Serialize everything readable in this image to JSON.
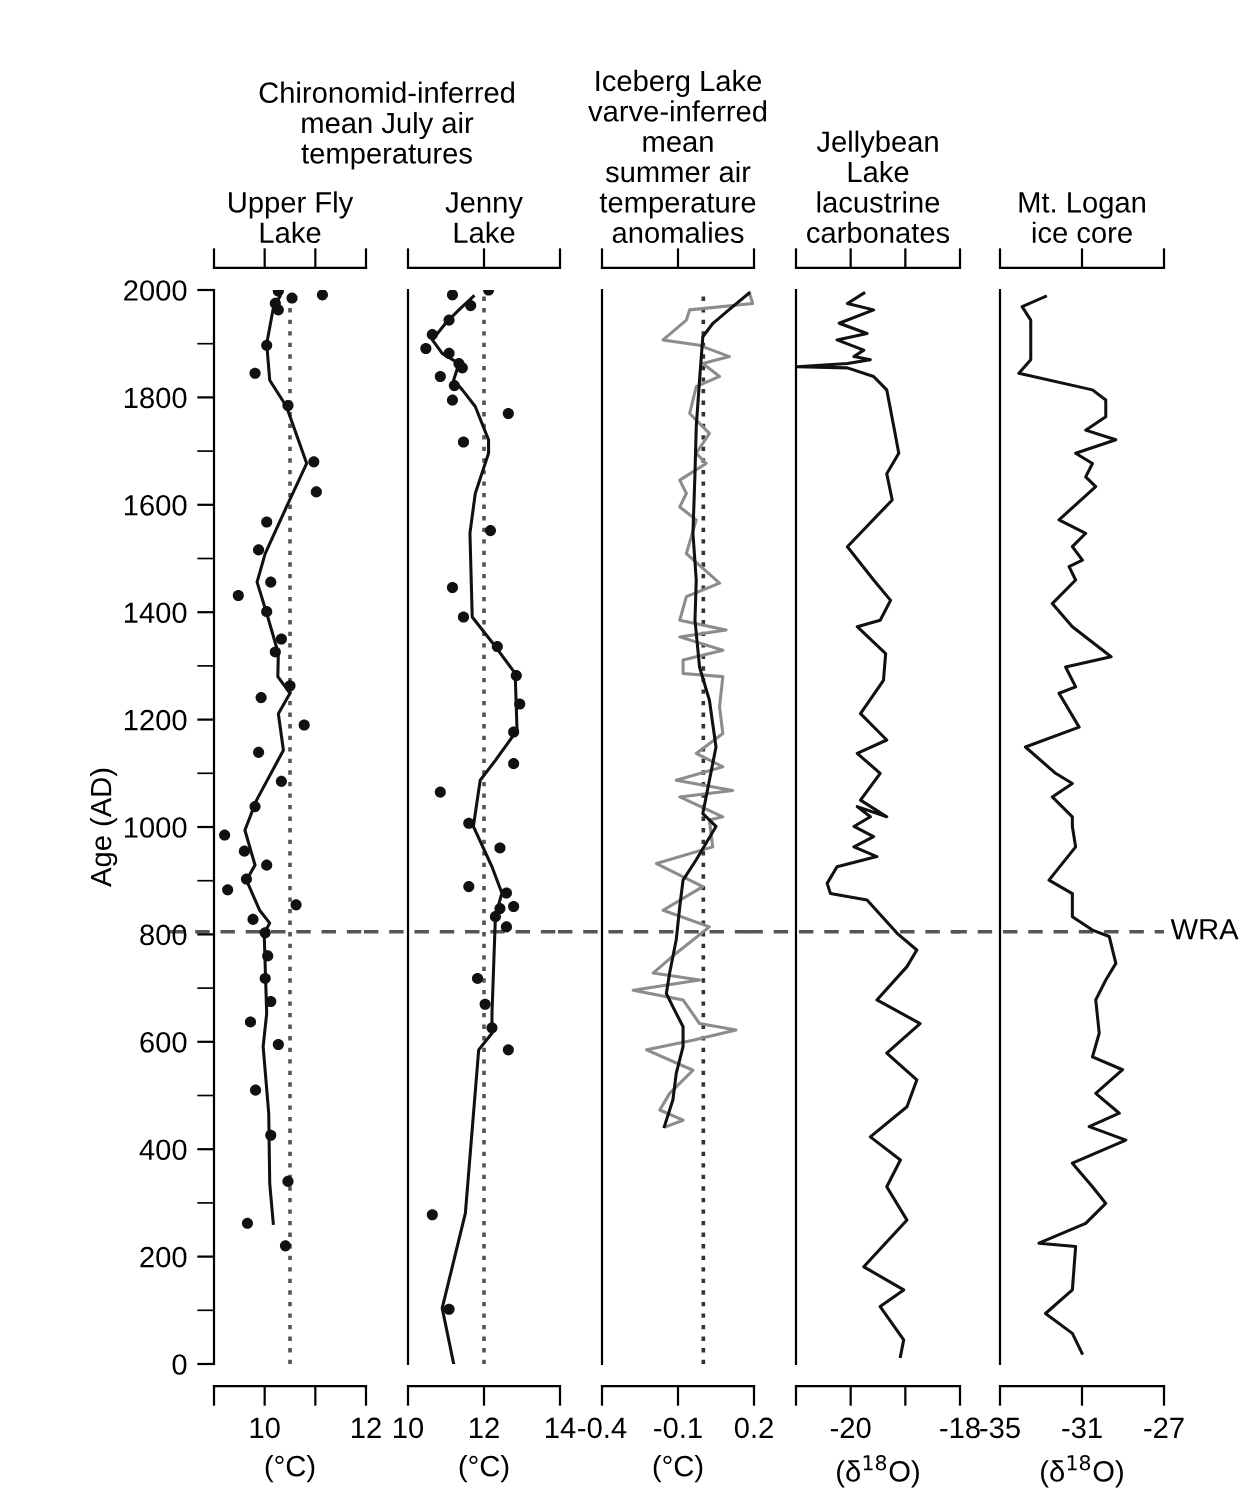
{
  "chart_data": [
    {
      "type": "scatter",
      "title": "Upper Fly\nLake",
      "xlabel": "(°C)",
      "ylabel": "Age (AD)",
      "annotations": [
        "Chironomid-inferred\nmean July air\ntemperatures"
      ],
      "xlim": [
        9,
        12
      ],
      "xticks": [
        {
          "value": 9,
          "label": null
        },
        10,
        {
          "value": 11,
          "label": null
        },
        12
      ],
      "ylim": [
        0,
        2000
      ],
      "yticks": [
        0,
        {
          "value": 100,
          "label": null
        },
        200,
        {
          "value": 300,
          "label": null
        },
        400,
        {
          "value": 500,
          "label": null
        },
        600,
        {
          "value": 700,
          "label": null
        },
        800,
        {
          "value": 900,
          "label": null
        },
        1000,
        {
          "value": 1100,
          "label": null
        },
        1200,
        {
          "value": 1300,
          "label": null
        },
        1400,
        {
          "value": 1500,
          "label": null
        },
        1600,
        {
          "value": 1700,
          "label": null
        },
        1800,
        {
          "value": 1900,
          "label": null
        },
        2000
      ],
      "series": [
        {
          "marker": "circle",
          "color": "#111111",
          "x": [
            10.27,
            11.14,
            10.54,
            10.21,
            10.27,
            10.04,
            9.81,
            10.46,
            10.97,
            11.02,
            10.04,
            9.88,
            10.12,
            9.48,
            10.04,
            10.33,
            10.21,
            10.5,
            9.93,
            10.78,
            9.88,
            10.33,
            9.81,
            9.21,
            9.6,
            10.04,
            9.64,
            9.27,
            10.62,
            9.77,
            10.01,
            10.06,
            10.01,
            10.12,
            9.72,
            10.27,
            9.82,
            10.12,
            10.46,
            9.66,
            10.41
          ],
          "values": [
            1998,
            1991,
            1985,
            1975,
            1963,
            1897,
            1845,
            1785,
            1680,
            1624,
            1568,
            1516,
            1456,
            1431,
            1401,
            1350,
            1326,
            1263,
            1241,
            1190,
            1139,
            1085,
            1038,
            985,
            955,
            929,
            903,
            883,
            855,
            828,
            803,
            760,
            718,
            675,
            637,
            595,
            510,
            426,
            340,
            262,
            220
          ]
        },
        {
          "type": "line",
          "color": "#111111",
          "x": [
            10.3,
            10.17,
            10.04,
            10.1,
            10.43,
            10.83,
            10.43,
            10.01,
            9.85,
            10.04,
            10.27,
            10.26,
            10.5,
            10.27,
            10.37,
            9.84,
            9.61,
            9.81,
            9.64,
            9.9,
            10.1,
            9.99,
            10.04,
            9.97,
            10.08,
            10.1,
            10.17
          ],
          "values": [
            1988,
            1966,
            1900,
            1832,
            1783,
            1677,
            1596,
            1509,
            1456,
            1398,
            1323,
            1280,
            1249,
            1211,
            1143,
            1050,
            994,
            929,
            901,
            845,
            821,
            802,
            653,
            591,
            467,
            336,
            262
          ]
        }
      ],
      "ref_lines": [
        {
          "axis": "x",
          "value": 10.5,
          "line_style": "dotted",
          "color": "#555555"
        },
        {
          "axis": "y",
          "value": 805,
          "line_style": "dashed",
          "color": "#555555"
        }
      ]
    },
    {
      "type": "scatter",
      "title": "Jenny\nLake",
      "xlabel": "(°C)",
      "tick_labels": "x",
      "xlim": [
        10,
        14
      ],
      "xticks": [
        10,
        12,
        14
      ],
      "ylim": [
        0,
        2000
      ],
      "series": [
        {
          "marker": "circle",
          "color": "#111111",
          "x": [
            12.12,
            11.17,
            11.65,
            11.08,
            10.64,
            10.47,
            11.08,
            11.34,
            11.43,
            10.85,
            11.22,
            11.17,
            12.64,
            11.46,
            12.17,
            11.17,
            11.46,
            12.35,
            12.85,
            12.94,
            12.78,
            12.78,
            10.85,
            11.6,
            12.42,
            11.6,
            12.59,
            12.78,
            12.42,
            12.3,
            12.59,
            11.83,
            12.03,
            12.21,
            12.64,
            10.64,
            11.08
          ],
          "values": [
            2000,
            1991,
            1971,
            1944,
            1917,
            1891,
            1882,
            1863,
            1855,
            1839,
            1822,
            1795,
            1770,
            1717,
            1552,
            1446,
            1391,
            1336,
            1282,
            1229,
            1177,
            1118,
            1065,
            1007,
            961,
            889,
            877,
            852,
            848,
            833,
            814,
            718,
            670,
            626,
            585,
            278,
            102
          ]
        },
        {
          "type": "line",
          "color": "#111111",
          "x": [
            11.72,
            11.34,
            10.99,
            10.64,
            10.9,
            11.34,
            11.2,
            11.43,
            11.77,
            12.12,
            12.12,
            11.77,
            11.63,
            11.69,
            12.3,
            12.82,
            12.87,
            12.3,
            11.9,
            11.72,
            12.21,
            12.47,
            12.3,
            12.21,
            12.21,
            11.86,
            11.51,
            10.9,
            11.2
          ],
          "values": [
            1988,
            1963,
            1938,
            1907,
            1882,
            1863,
            1832,
            1814,
            1783,
            1721,
            1696,
            1621,
            1547,
            1391,
            1336,
            1286,
            1180,
            1124,
            1087,
            1001,
            926,
            877,
            833,
            653,
            616,
            585,
            281,
            104,
            1
          ]
        }
      ],
      "ref_lines": [
        {
          "axis": "x",
          "value": 12,
          "line_style": "dotted",
          "color": "#555555"
        },
        {
          "axis": "y",
          "value": 805,
          "line_style": "dashed",
          "color": "#555555"
        }
      ]
    },
    {
      "type": "line",
      "title": "Iceberg Lake\nvarve-inferred\nmean\nsummer air\ntemperature\nanomalies",
      "xlabel": "(°C)",
      "tick_labels": "x",
      "xlim": [
        -0.4,
        0.2
      ],
      "xticks": [
        -0.4,
        -0.1,
        0.2
      ],
      "ylim": [
        0,
        2000
      ],
      "series": [
        {
          "color": "#8c8c8c",
          "x": [
            0.182,
            0.195,
            -0.054,
            -0.067,
            -0.159,
            -0.015,
            0.103,
            -0.002,
            0.064,
            -0.028,
            -0.054,
            0.024,
            -0.028,
            0.011,
            -0.093,
            -0.067,
            -0.093,
            -0.028,
            -0.067,
            0.064,
            -0.067,
            -0.093,
            0.09,
            -0.093,
            0.077,
            -0.08,
            -0.08,
            0.077,
            0.064,
            0.077,
            -0.028,
            0.077,
            -0.107,
            0.116,
            -0.093,
            0.077,
            0.024,
            0.037,
            -0.185,
            -0.002,
            -0.159,
            0.024,
            -0.107,
            -0.198,
            -0.015,
            -0.277,
            -0.08,
            -0.015,
            0.129,
            -0.041,
            -0.224,
            -0.041,
            -0.133,
            -0.172,
            -0.08,
            -0.146
          ],
          "values": [
            1994,
            1975,
            1963,
            1944,
            1907,
            1897,
            1876,
            1863,
            1839,
            1820,
            1770,
            1733,
            1696,
            1677,
            1646,
            1621,
            1596,
            1572,
            1509,
            1454,
            1429,
            1385,
            1367,
            1354,
            1329,
            1311,
            1286,
            1280,
            1224,
            1174,
            1137,
            1112,
            1087,
            1068,
            1056,
            1019,
            1013,
            963,
            932,
            889,
            845,
            814,
            765,
            728,
            715,
            696,
            678,
            634,
            622,
            603,
            585,
            547,
            504,
            473,
            454,
            442
          ]
        },
        {
          "color": "#111111",
          "x": [
            0.18,
            0.116,
            0.038,
            -0.002,
            -0.015,
            -0.028,
            -0.033,
            -0.041,
            -0.028,
            -0.033,
            -0.015,
            0.024,
            0.05,
            0.024,
            -0.002,
            0.05,
            -0.028,
            -0.08,
            -0.093,
            -0.107,
            -0.133,
            -0.146,
            -0.12,
            -0.08,
            -0.08,
            -0.107,
            -0.12,
            -0.154
          ],
          "values": [
            1994,
            1969,
            1938,
            1913,
            1832,
            1745,
            1658,
            1547,
            1460,
            1385,
            1298,
            1236,
            1149,
            1087,
            1025,
            1001,
            939,
            901,
            852,
            790,
            728,
            690,
            665,
            628,
            591,
            541,
            492,
            442
          ]
        }
      ],
      "ref_lines": [
        {
          "axis": "x",
          "value": 0,
          "line_style": "dotted",
          "color": "#333333"
        },
        {
          "axis": "y",
          "value": 805,
          "line_style": "dashed",
          "color": "#555555"
        }
      ]
    },
    {
      "type": "line",
      "title": "Jellybean\nLake\nlacustrine\ncarbonates",
      "xlabel": "(δ$^{18}$O)",
      "tick_labels": "x",
      "xlim": [
        -21,
        -18
      ],
      "xticks": [
        {
          "value": -21,
          "label": null
        },
        -20,
        {
          "value": -19,
          "label": null
        },
        -18
      ],
      "ylim": [
        0,
        2000
      ],
      "series": [
        {
          "color": "#111111",
          "x": [
            -19.76,
            -20.06,
            -19.58,
            -20.21,
            -19.7,
            -20.25,
            -19.76,
            -19.94,
            -19.64,
            -20.06,
            -20.98,
            -20.06,
            -19.58,
            -19.34,
            -19.21,
            -19.12,
            -19.34,
            -19.24,
            -20.06,
            -19.58,
            -19.27,
            -19.46,
            -19.88,
            -19.36,
            -19.4,
            -19.82,
            -19.34,
            -19.88,
            -19.46,
            -19.82,
            -19.34,
            -19.88,
            -19.64,
            -19.94,
            -19.58,
            -19.94,
            -19.52,
            -20.25,
            -20.43,
            -20.37,
            -19.7,
            -19.15,
            -18.79,
            -18.97,
            -19.52,
            -18.73,
            -19.34,
            -18.79,
            -18.97,
            -19.64,
            -19.09,
            -19.34,
            -18.97,
            -19.76,
            -19.03,
            -19.46,
            -19.03,
            -19.09
          ],
          "values": [
            1994,
            1975,
            1963,
            1938,
            1919,
            1907,
            1888,
            1876,
            1870,
            1863,
            1857,
            1855,
            1839,
            1814,
            1745,
            1696,
            1658,
            1609,
            1522,
            1460,
            1422,
            1385,
            1373,
            1323,
            1273,
            1211,
            1162,
            1137,
            1100,
            1050,
            1019,
            1038,
            1019,
            1001,
            982,
            963,
            945,
            926,
            895,
            876,
            864,
            802,
            771,
            740,
            678,
            634,
            579,
            529,
            479,
            423,
            380,
            330,
            268,
            181,
            138,
            107,
            45,
            14
          ]
        }
      ],
      "ref_lines": [
        {
          "axis": "y",
          "value": 805,
          "line_style": "dashed",
          "color": "#555555"
        }
      ]
    },
    {
      "type": "line",
      "title": "Mt. Logan\nice core",
      "xlabel": "(δ$^{18}$O)",
      "tick_labels": "x",
      "xlim": [
        -35,
        -27
      ],
      "xticks": [
        -35,
        -31,
        -27
      ],
      "ylim": [
        0,
        2000
      ],
      "series": [
        {
          "color": "#111111",
          "x": [
            -32.78,
            -33.92,
            -33.5,
            -33.5,
            -34.08,
            -30.49,
            -29.84,
            -29.84,
            -30.82,
            -29.35,
            -31.31,
            -30.49,
            -30.82,
            -30.33,
            -32.12,
            -30.82,
            -31.47,
            -30.98,
            -31.63,
            -31.31,
            -32.45,
            -31.47,
            -29.58,
            -31.8,
            -31.31,
            -32.12,
            -31.14,
            -33.76,
            -32.29,
            -31.47,
            -32.45,
            -31.47,
            -31.47,
            -31.31,
            -32.61,
            -31.47,
            -31.47,
            -30.49,
            -29.67,
            -29.35,
            -29.84,
            -30.33,
            -30.16,
            -30.49,
            -29.02,
            -30.33,
            -29.18,
            -30.65,
            -28.86,
            -31.47,
            -30.49,
            -29.84,
            -30.82,
            -33.1,
            -31.31,
            -31.47,
            -32.78,
            -31.47,
            -31.0
          ],
          "values": [
            1988,
            1969,
            1944,
            1870,
            1845,
            1814,
            1795,
            1764,
            1739,
            1721,
            1696,
            1677,
            1652,
            1634,
            1572,
            1547,
            1522,
            1497,
            1485,
            1460,
            1416,
            1373,
            1317,
            1298,
            1261,
            1249,
            1186,
            1149,
            1100,
            1081,
            1056,
            1019,
            1001,
            963,
            901,
            876,
            833,
            808,
            796,
            746,
            715,
            678,
            616,
            572,
            548,
            504,
            467,
            442,
            417,
            374,
            330,
            299,
            262,
            225,
            219,
            138,
            94,
            57,
            20
          ]
        }
      ],
      "ref_lines": [
        {
          "axis": "y",
          "value": 805,
          "line_style": "dashed",
          "color": "#555555",
          "label": "WRA"
        }
      ]
    }
  ]
}
